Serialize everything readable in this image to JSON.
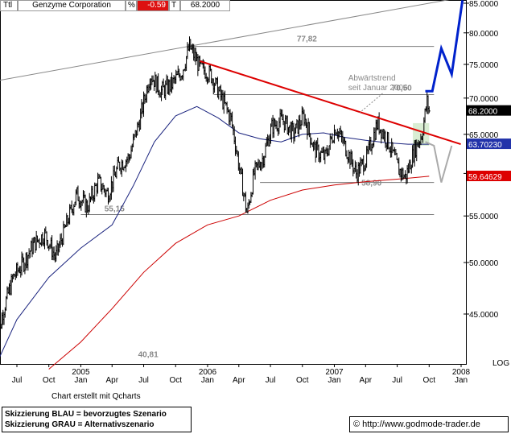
{
  "header": {
    "tool_icon_label": "Ttl",
    "instrument": "Genzyme Corporation",
    "pct_label": "%",
    "change": "-0.59",
    "last_label": "T",
    "last_price": "68.2000"
  },
  "chart_data": {
    "type": "candlestick",
    "scale": "log",
    "ylim": [
      40,
      85
    ],
    "y_ticks": [
      "85.0000",
      "80.0000",
      "75.0000",
      "70.0000",
      "65.0000",
      "60.0000",
      "55.0000",
      "50.0000",
      "45.0000"
    ],
    "y_tick_values": [
      85,
      80,
      75,
      70,
      65,
      60,
      55,
      50,
      45
    ],
    "scale_label": "LOG",
    "x_labels": [
      {
        "month": "Jul",
        "year": "",
        "date": "2004-07"
      },
      {
        "month": "Oct",
        "year": "",
        "date": "2004-10"
      },
      {
        "month": "Jan",
        "year": "2005",
        "date": "2005-01"
      },
      {
        "month": "Apr",
        "year": "",
        "date": "2005-04"
      },
      {
        "month": "Jul",
        "year": "",
        "date": "2005-07"
      },
      {
        "month": "Oct",
        "year": "",
        "date": "2005-10"
      },
      {
        "month": "Jan",
        "year": "2006",
        "date": "2006-01"
      },
      {
        "month": "Apr",
        "year": "",
        "date": "2006-04"
      },
      {
        "month": "Jul",
        "year": "",
        "date": "2006-07"
      },
      {
        "month": "Oct",
        "year": "",
        "date": "2006-10"
      },
      {
        "month": "Jan",
        "year": "2007",
        "date": "2007-01"
      },
      {
        "month": "Apr",
        "year": "",
        "date": "2007-04"
      },
      {
        "month": "Jul",
        "year": "",
        "date": "2007-07"
      },
      {
        "month": "Oct",
        "year": "",
        "date": "2007-10"
      },
      {
        "month": "Jan",
        "year": "2008",
        "date": "2008-01"
      }
    ],
    "price_path": [
      [
        "2004-05-01",
        41.0
      ],
      [
        "2004-05-20",
        45.0
      ],
      [
        "2004-06-20",
        48.5
      ],
      [
        "2004-07-20",
        50.0
      ],
      [
        "2004-08-20",
        52.0
      ],
      [
        "2004-09-20",
        53.0
      ],
      [
        "2004-10-20",
        50.5
      ],
      [
        "2004-11-20",
        54.0
      ],
      [
        "2004-12-20",
        57.5
      ],
      [
        "2005-01-20",
        56.0
      ],
      [
        "2005-02-20",
        59.0
      ],
      [
        "2005-03-20",
        57.5
      ],
      [
        "2005-04-20",
        61.0
      ],
      [
        "2005-05-20",
        62.0
      ],
      [
        "2005-06-20",
        67.0
      ],
      [
        "2005-07-20",
        73.5
      ],
      [
        "2005-08-20",
        71.0
      ],
      [
        "2005-09-20",
        72.0
      ],
      [
        "2005-10-20",
        74.0
      ],
      [
        "2005-11-10",
        77.8
      ],
      [
        "2005-12-10",
        74.5
      ],
      [
        "2006-01-10",
        73.5
      ],
      [
        "2006-02-10",
        70.0
      ],
      [
        "2006-03-10",
        67.0
      ],
      [
        "2006-04-05",
        60.0
      ],
      [
        "2006-04-25",
        55.2
      ],
      [
        "2006-05-15",
        60.0
      ],
      [
        "2006-06-10",
        62.0
      ],
      [
        "2006-07-05",
        66.0
      ],
      [
        "2006-08-05",
        67.0
      ],
      [
        "2006-09-05",
        65.0
      ],
      [
        "2006-10-05",
        67.5
      ],
      [
        "2006-11-05",
        63.0
      ],
      [
        "2006-12-05",
        62.0
      ],
      [
        "2007-01-05",
        66.0
      ],
      [
        "2007-02-05",
        63.0
      ],
      [
        "2007-03-05",
        60.0
      ],
      [
        "2007-04-05",
        62.0
      ],
      [
        "2007-05-05",
        66.5
      ],
      [
        "2007-06-05",
        64.0
      ],
      [
        "2007-07-05",
        60.5
      ],
      [
        "2007-07-25",
        59.5
      ],
      [
        "2007-08-20",
        63.0
      ],
      [
        "2007-09-10",
        65.0
      ],
      [
        "2007-09-25",
        69.5
      ],
      [
        "2007-10-01",
        68.2
      ]
    ],
    "ma_blue": [
      [
        "2004-05-01",
        40.5
      ],
      [
        "2004-07-01",
        44.5
      ],
      [
        "2004-10-01",
        48.5
      ],
      [
        "2005-01-01",
        51.5
      ],
      [
        "2005-04-01",
        54.0
      ],
      [
        "2005-06-01",
        58.5
      ],
      [
        "2005-08-01",
        64.0
      ],
      [
        "2005-10-01",
        67.5
      ],
      [
        "2005-12-01",
        68.8
      ],
      [
        "2006-02-01",
        67.2
      ],
      [
        "2006-04-01",
        65.2
      ],
      [
        "2006-06-01",
        64.4
      ],
      [
        "2006-08-01",
        64.0
      ],
      [
        "2006-10-01",
        65.0
      ],
      [
        "2006-12-01",
        65.2
      ],
      [
        "2007-02-01",
        64.6
      ],
      [
        "2007-04-01",
        64.2
      ],
      [
        "2007-06-01",
        63.9
      ],
      [
        "2007-08-01",
        63.7
      ],
      [
        "2007-10-01",
        63.7
      ]
    ],
    "ma_red": [
      [
        "2004-10-01",
        40.2
      ],
      [
        "2005-01-01",
        42.5
      ],
      [
        "2005-04-01",
        45.5
      ],
      [
        "2005-07-01",
        49.0
      ],
      [
        "2005-10-01",
        52.0
      ],
      [
        "2006-01-01",
        54.0
      ],
      [
        "2006-04-01",
        55.0
      ],
      [
        "2006-07-01",
        56.8
      ],
      [
        "2006-10-01",
        58.0
      ],
      [
        "2007-01-01",
        58.6
      ],
      [
        "2007-04-01",
        59.0
      ],
      [
        "2007-07-01",
        59.3
      ],
      [
        "2007-10-01",
        59.65
      ]
    ],
    "support_lines": [
      {
        "label": "77,82",
        "value": 77.82,
        "from": "2005-11-10",
        "to": "2007-10-15"
      },
      {
        "label": "70,50",
        "value": 70.5,
        "from": "2006-01-20",
        "to": "2007-10-15"
      },
      {
        "label": "58,90",
        "value": 58.9,
        "from": "2006-06-01",
        "to": "2007-10-15"
      },
      {
        "label": "55,15",
        "value": 55.15,
        "from": "2005-01-01",
        "to": "2007-10-15"
      },
      {
        "label": "40,81",
        "value": 40.81,
        "from": "2004-05-01",
        "to": "2004-05-01"
      }
    ],
    "trendline_red": {
      "from": [
        "2005-12-10",
        75.5
      ],
      "to": [
        "2007-12-31",
        63.7
      ]
    },
    "long_trendline": {
      "from": [
        "2004-05-01",
        72.5
      ],
      "to": [
        "2008-01-01",
        86.0
      ]
    },
    "annotation": [
      "Abwärtstrend",
      "seit Januar 2006"
    ],
    "scenario_blue": [
      [
        "2007-09-20",
        71.0
      ],
      [
        "2007-10-10",
        71.0
      ],
      [
        "2007-11-05",
        77.5
      ],
      [
        "2007-12-05",
        73.5
      ],
      [
        "2008-01-05",
        85.5
      ]
    ],
    "scenario_gray": [
      [
        "2007-09-20",
        64.0
      ],
      [
        "2007-10-15",
        63.5
      ],
      [
        "2007-11-05",
        58.9
      ],
      [
        "2007-12-05",
        63.5
      ]
    ],
    "box_green": {
      "from": "2007-08-15",
      "to": "2007-10-01",
      "low": 63.5,
      "high": 66.5
    },
    "price_labels": [
      {
        "value": 68.2,
        "text": "68.2000",
        "color": "#000000"
      },
      {
        "value": 63.7023,
        "text": "63.70230",
        "color": "#2233aa"
      },
      {
        "value": 59.64629,
        "text": "59.64629",
        "color": "#dd0000"
      }
    ]
  },
  "footer": {
    "credit": "Chart erstellt mit Qcharts",
    "legend_blue": "Skizzierung BLAU = bevorzugtes Szenario",
    "legend_gray": "Skizzierung GRAU = Alternativszenario",
    "copyright": "©",
    "source_url": "http://www.godmode-trader.de"
  },
  "colors": {
    "price": "#000000",
    "ma_blue": "#1a237e",
    "ma_red": "#cc0000",
    "trend": "#dd0000",
    "scenario_blue": "#0022cc",
    "scenario_gray": "#aaaaaa",
    "grid": "#000000"
  }
}
